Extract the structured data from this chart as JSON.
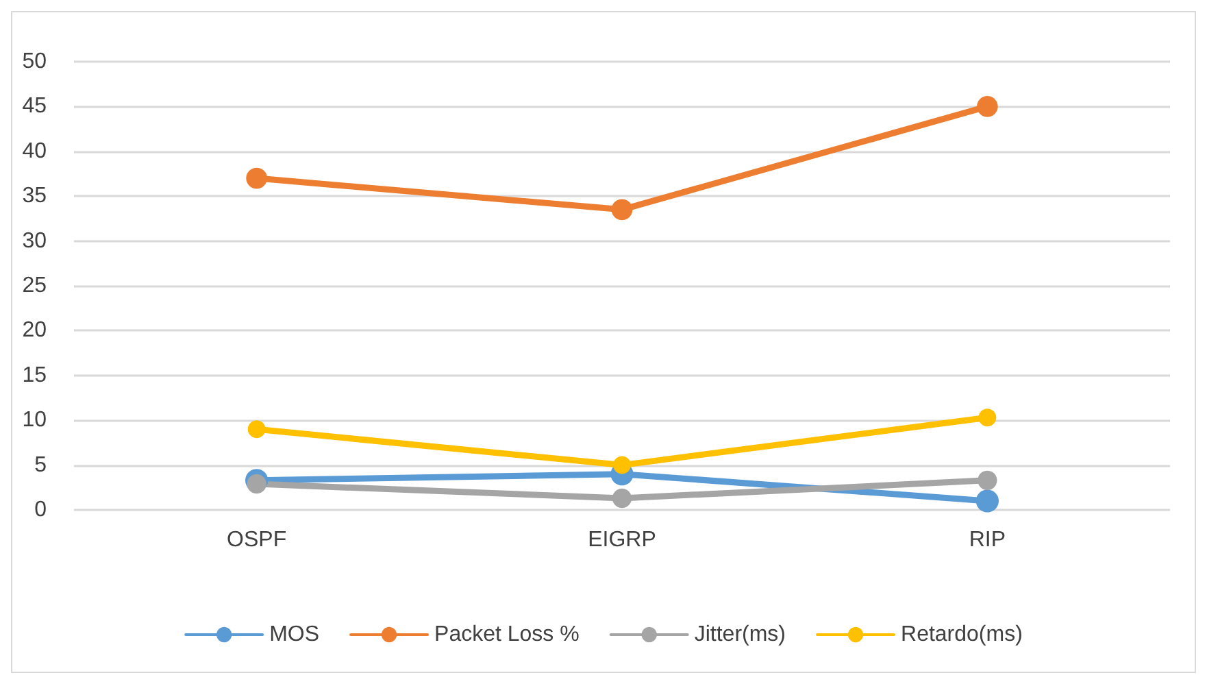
{
  "chart_data": {
    "type": "line",
    "categories": [
      "OSPF",
      "EIGRP",
      "RIP"
    ],
    "series": [
      {
        "name": "MOS",
        "color": "#5b9bd5",
        "values": [
          3.3,
          4.0,
          1.0
        ]
      },
      {
        "name": "Packet Loss %",
        "color": "#ed7d31",
        "values": [
          37,
          33.5,
          45
        ]
      },
      {
        "name": "Jitter(ms)",
        "color": "#a5a5a5",
        "values": [
          2.9,
          1.3,
          3.3
        ]
      },
      {
        "name": "Retardo(ms)",
        "color": "#ffc000",
        "values": [
          9.0,
          5.0,
          10.3
        ]
      }
    ],
    "ylim": [
      0,
      50
    ],
    "yticks": [
      0,
      5,
      10,
      15,
      20,
      25,
      30,
      35,
      40,
      45,
      50
    ],
    "grid": "y",
    "legend": "bottom",
    "marker": "circle",
    "line_style": "solid"
  }
}
